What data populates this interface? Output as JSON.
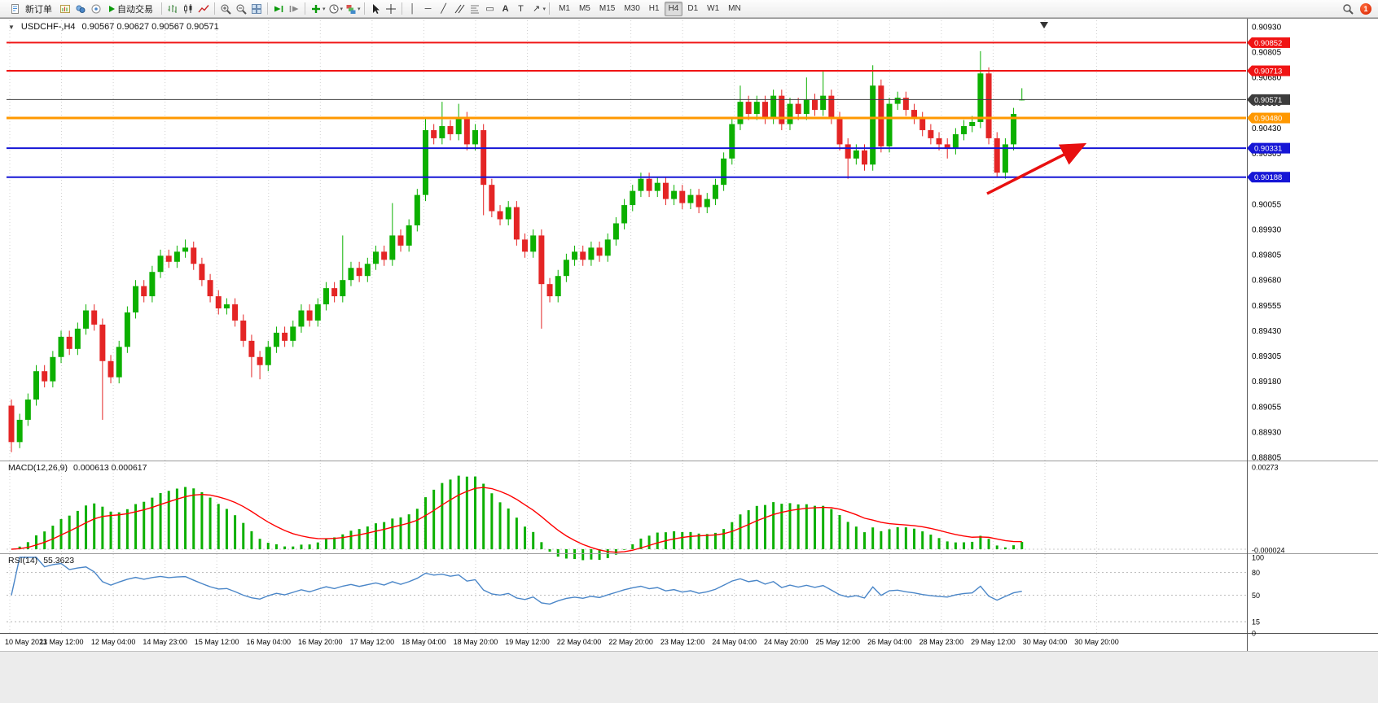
{
  "toolbar": {
    "new_order_label": "新订单",
    "auto_trading_label": "自动交易",
    "timeframes": [
      "M1",
      "M5",
      "M15",
      "M30",
      "H1",
      "H4",
      "D1",
      "W1",
      "MN"
    ],
    "active_timeframe": "H4",
    "notification_count": "1"
  },
  "chart_data": {
    "type": "candlestick",
    "symbol_period": "USDCHF-,H4",
    "ohlc_display": "0.90567 0.90627 0.90567 0.90571",
    "y_range": [
      0.88805,
      0.9093
    ],
    "price_scale_labels": [
      "0.90930",
      "0.90805",
      "0.90680",
      "0.90555",
      "0.90430",
      "0.90305",
      "0.90180",
      "0.90055",
      "0.89930",
      "0.89805",
      "0.89680",
      "0.89555",
      "0.89430",
      "0.89305",
      "0.89180",
      "0.89055",
      "0.88930",
      "0.88805"
    ],
    "time_axis_labels": [
      "10 May 2023",
      "11 May 12:00",
      "12 May 04:00",
      "14 May 23:00",
      "15 May 12:00",
      "16 May 04:00",
      "16 May 20:00",
      "17 May 12:00",
      "18 May 04:00",
      "18 May 20:00",
      "19 May 12:00",
      "22 May 04:00",
      "22 May 20:00",
      "23 May 12:00",
      "24 May 04:00",
      "24 May 20:00",
      "25 May 12:00",
      "26 May 04:00",
      "28 May 23:00",
      "29 May 12:00",
      "30 May 04:00",
      "30 May 20:00"
    ],
    "horizontal_levels": [
      {
        "label": "0.90852",
        "price": 0.90852,
        "color": "#f01414",
        "width": 2
      },
      {
        "label": "0.90713",
        "price": 0.90713,
        "color": "#f01414",
        "width": 2
      },
      {
        "label": "0.90480",
        "price": 0.9048,
        "color": "#ff9800",
        "width": 3
      },
      {
        "label": "0.90331",
        "price": 0.90331,
        "color": "#1616d6",
        "width": 2
      },
      {
        "label": "0.90188",
        "price": 0.90188,
        "color": "#1616d6",
        "width": 2
      }
    ],
    "current_price": {
      "label": "0.90571",
      "price": 0.90571,
      "color": "#3c3c3c"
    },
    "trend_arrow": {
      "color": "#e81010",
      "direction": "up-right"
    },
    "colors": {
      "up": "#0cb000",
      "down": "#e42525",
      "macd_histogram": "#0cb000",
      "macd_signal": "#ff0000",
      "rsi_line": "#4a86c8",
      "grid": "#d0d0d0"
    },
    "candles": {
      "first_open": 0.8906,
      "default_wick": 0.0003,
      "closes": [
        0.8888,
        0.8899,
        0.8909,
        0.8923,
        0.8918,
        0.893,
        0.894,
        0.8934,
        0.8944,
        0.8953,
        0.8946,
        0.8928,
        0.892,
        0.8935,
        0.8952,
        0.8965,
        0.896,
        0.8972,
        0.898,
        0.8977,
        0.8982,
        0.8984,
        0.8976,
        0.8968,
        0.896,
        0.8954,
        0.8956,
        0.8948,
        0.8938,
        0.893,
        0.8926,
        0.8935,
        0.8942,
        0.8938,
        0.8945,
        0.8953,
        0.8948,
        0.8956,
        0.8964,
        0.896,
        0.8968,
        0.8974,
        0.897,
        0.8976,
        0.8982,
        0.8978,
        0.899,
        0.8985,
        0.8995,
        0.901,
        0.9042,
        0.9038,
        0.9044,
        0.904,
        0.9048,
        0.9035,
        0.9042,
        0.9015,
        0.9002,
        0.8998,
        0.9004,
        0.8988,
        0.8982,
        0.899,
        0.8966,
        0.896,
        0.897,
        0.8978,
        0.8982,
        0.8978,
        0.8984,
        0.898,
        0.8988,
        0.8996,
        0.9005,
        0.9012,
        0.9018,
        0.9012,
        0.9016,
        0.9008,
        0.9012,
        0.9006,
        0.901,
        0.9004,
        0.9008,
        0.9015,
        0.9028,
        0.9045,
        0.9056,
        0.905,
        0.9056,
        0.9048,
        0.9059,
        0.9045,
        0.9055,
        0.905,
        0.9057,
        0.9052,
        0.9059,
        0.9048,
        0.9035,
        0.9028,
        0.9032,
        0.9025,
        0.9064,
        0.9034,
        0.9055,
        0.9058,
        0.9052,
        0.9048,
        0.9042,
        0.9038,
        0.9035,
        0.9033,
        0.904,
        0.9044,
        0.9046,
        0.907,
        0.9038,
        0.9021,
        0.9035,
        0.905,
        0.90571
      ],
      "overrides": {
        "0": {
          "l": 0.8883
        },
        "11": {
          "l": 0.8899
        },
        "21": {
          "h": 0.8988
        },
        "29": {
          "l": 0.892
        },
        "30": {
          "l": 0.8919
        },
        "40": {
          "h": 0.899
        },
        "46": {
          "h": 0.9006
        },
        "50": {
          "h": 0.9048
        },
        "52": {
          "h": 0.9056
        },
        "54": {
          "h": 0.9055
        },
        "57": {
          "l": 0.9
        },
        "64": {
          "l": 0.8944
        },
        "88": {
          "h": 0.9064
        },
        "96": {
          "h": 0.9068
        },
        "98": {
          "h": 0.9071
        },
        "101": {
          "l": 0.9018
        },
        "104": {
          "h": 0.9074
        },
        "113": {
          "l": 0.9028
        },
        "117": {
          "h": 0.9081
        },
        "119": {
          "l": 0.9019
        },
        "122": {
          "o": 0.90567,
          "h": 0.90627,
          "l": 0.90567
        }
      }
    },
    "indicators": {
      "macd": {
        "label": "MACD(12,26,9)",
        "display_values": "0.000613 0.000617",
        "params": [
          12,
          26,
          9
        ],
        "scale_labels": [
          "0.00273",
          "-0.000024"
        ]
      },
      "rsi": {
        "label": "RSI(14)",
        "display_value": "55.3623",
        "period": 14,
        "levels": [
          80,
          50,
          15
        ],
        "scale_labels": [
          "100",
          "80",
          "50",
          "15",
          "0"
        ]
      }
    }
  }
}
